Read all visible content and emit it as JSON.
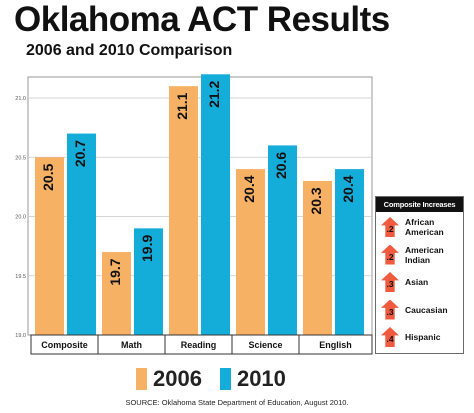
{
  "title": "Oklahoma ACT Results",
  "subtitle": "2006 and 2010 Comparison",
  "source": "SOURCE: Oklahoma State Department of Education, August 2010.",
  "colors": {
    "2006": "#f7b165",
    "2010": "#14acd8"
  },
  "chart_data": {
    "type": "bar",
    "categories": [
      "Composite",
      "Math",
      "Reading",
      "Science",
      "English"
    ],
    "series": [
      {
        "name": "2006",
        "values": [
          20.5,
          19.7,
          21.1,
          20.4,
          20.3
        ]
      },
      {
        "name": "2010",
        "values": [
          20.7,
          19.9,
          21.2,
          20.6,
          20.4
        ]
      }
    ],
    "ylim": [
      19.0,
      21.0
    ],
    "yticks": [
      "19.0",
      "19.5",
      "20.0",
      "20.5",
      "21.0"
    ],
    "data_labels": [
      [
        "20.5",
        "19.7",
        "21.1",
        "20.4",
        "20.3"
      ],
      [
        "20.7",
        "19.9",
        "21.2",
        "20.6",
        "20.4"
      ]
    ],
    "grid": true,
    "legend": "bottom"
  },
  "composite_increases": {
    "title": "Composite Increases",
    "items": [
      {
        "value": ".2",
        "label_lines": [
          "African",
          "American"
        ]
      },
      {
        "value": ".2",
        "label_lines": [
          "American",
          "Indian"
        ]
      },
      {
        "value": ".3",
        "label_lines": [
          "Asian"
        ]
      },
      {
        "value": ".3",
        "label_lines": [
          "Caucasian"
        ]
      },
      {
        "value": ".4",
        "label_lines": [
          "Hispanic"
        ]
      }
    ]
  }
}
